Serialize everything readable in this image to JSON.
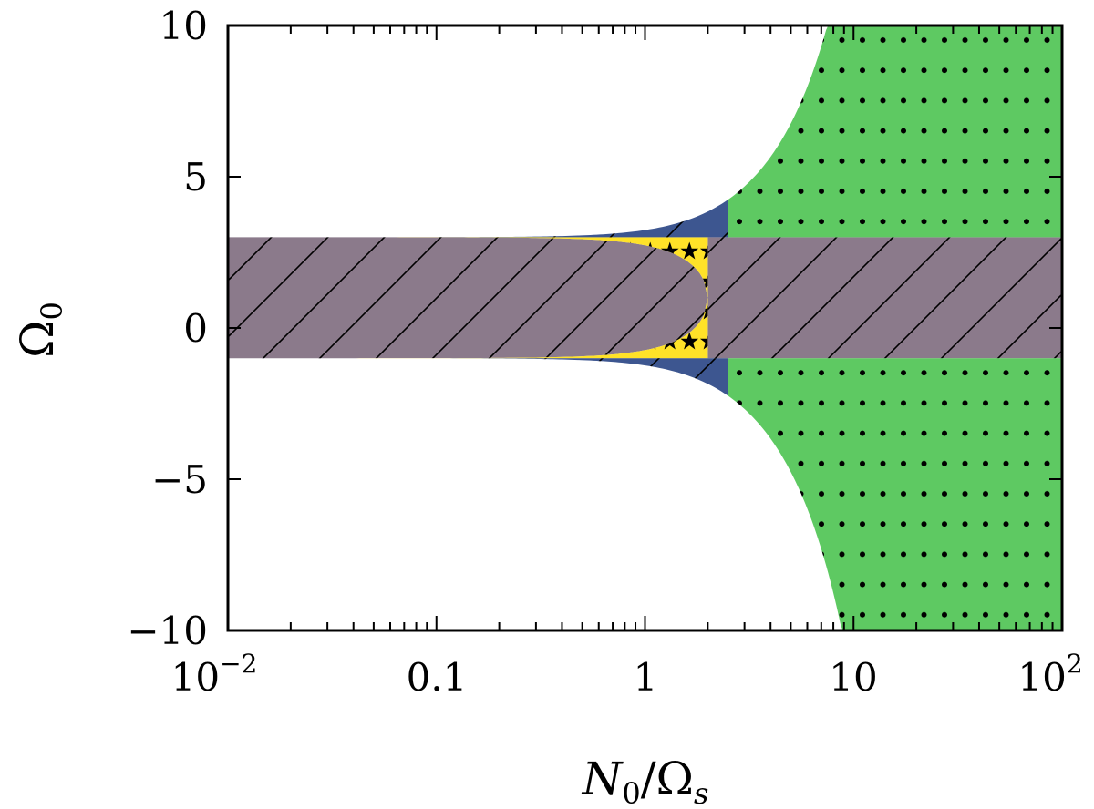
{
  "chart_data": {
    "type": "area",
    "title": "",
    "xlabel": "N0/Ωs",
    "ylabel": "Ω0",
    "xlabel_parts": {
      "main": "N",
      "sub1": "0",
      "slash": "/Ω",
      "sub2": "s"
    },
    "ylabel_parts": {
      "main": "Ω",
      "sub": "0"
    },
    "xscale": "log",
    "xlim": [
      0.01,
      100
    ],
    "ylim": [
      -10,
      10
    ],
    "x_ticks": [
      {
        "value": 0.01,
        "label": "10",
        "exp": "−2"
      },
      {
        "value": 0.1,
        "label": "0.1",
        "exp": ""
      },
      {
        "value": 1,
        "label": "1",
        "exp": ""
      },
      {
        "value": 10,
        "label": "10",
        "exp": ""
      },
      {
        "value": 100,
        "label": "10",
        "exp": "2"
      }
    ],
    "y_ticks": [
      {
        "value": 10,
        "label": "10"
      },
      {
        "value": 5,
        "label": "5"
      },
      {
        "value": 0,
        "label": "0"
      },
      {
        "value": -5,
        "label": "−5"
      },
      {
        "value": -10,
        "label": "−10"
      }
    ],
    "band": {
      "lower": -1,
      "upper": 3,
      "center": 1
    },
    "boundary_model": "Ω0 = 1 ± sqrt(4 + (N0/Ωs)^2 + 6·(N0/Ωs)^4 / 900); inner branch Ω0 = 1 ± 2·sqrt(1 − (N0/2Ωs)^2)",
    "regions": [
      {
        "name": "yellow-stars",
        "color": "#ffe228",
        "pattern": "stars",
        "description": "inside band, outside inner lobe, x < 2"
      },
      {
        "name": "grey-hatched",
        "color": "#8b7a8b",
        "pattern": "diagonal-hatch",
        "description": "inner region between branches"
      },
      {
        "name": "blue",
        "color": "#3d5690",
        "pattern": "diagonal-hatch",
        "description": "outside band, inside outer boundary, x < 2.5"
      },
      {
        "name": "green-dots",
        "color": "#5ec962",
        "pattern": "dots",
        "description": "outside band, inside outer boundary, x >= 2.5"
      }
    ],
    "grid": false,
    "legend": "none"
  }
}
